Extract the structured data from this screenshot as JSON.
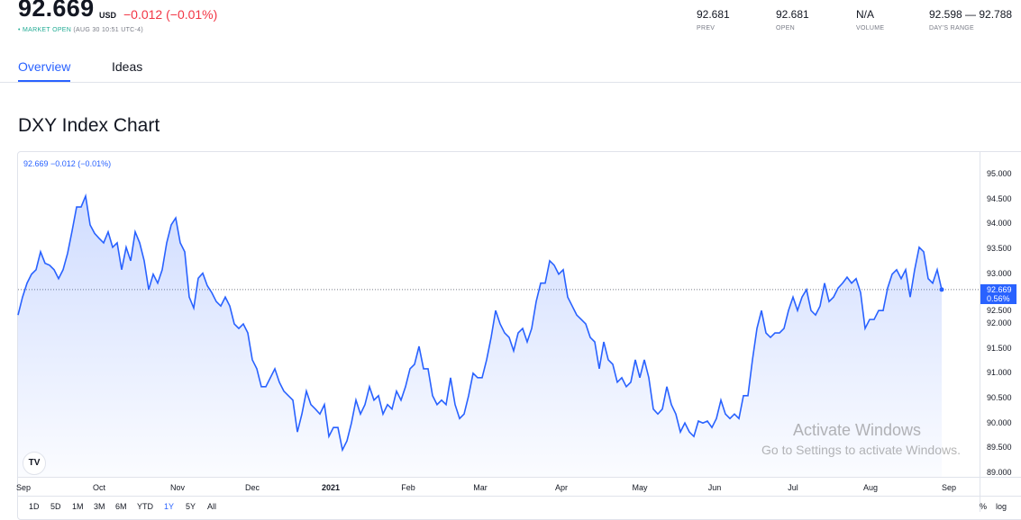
{
  "header": {
    "price": "92.669",
    "currency": "USD",
    "change": "−0.012 (−0.01%)",
    "market_status": "MARKET OPEN",
    "market_time": "(AUG 30 10:51 UTC-4)",
    "stats": [
      {
        "value": "92.681",
        "label": "PREV"
      },
      {
        "value": "92.681",
        "label": "OPEN"
      },
      {
        "value": "N/A",
        "label": "VOLUME"
      },
      {
        "value": "92.598 — 92.788",
        "label": "DAY'S RANGE"
      }
    ]
  },
  "tabs": [
    {
      "label": "Overview",
      "active": true
    },
    {
      "label": "Ideas",
      "active": false
    }
  ],
  "section_title": "DXY Index Chart",
  "chart_data": {
    "type": "area",
    "legend": "92.669 −0.012 (−0.01%)",
    "ylim": [
      88.9,
      95.25
    ],
    "y_ticks": [
      "95.000",
      "94.500",
      "94.000",
      "93.500",
      "93.000",
      "92.500",
      "92.000",
      "91.500",
      "91.000",
      "90.500",
      "90.000",
      "89.500",
      "89.000"
    ],
    "x_ticks": [
      "Sep",
      "Oct",
      "Nov",
      "Dec",
      "2021",
      "Feb",
      "Mar",
      "Apr",
      "May",
      "Jun",
      "Jul",
      "Aug",
      "Sep"
    ],
    "last_value": "92.669",
    "last_pct": "0.56%",
    "line_color": "#2962ff",
    "values": [
      92.16,
      92.52,
      92.8,
      92.98,
      93.07,
      93.43,
      93.2,
      93.16,
      93.07,
      92.89,
      93.07,
      93.4,
      93.85,
      94.33,
      94.33,
      94.55,
      93.97,
      93.8,
      93.7,
      93.61,
      93.83,
      93.52,
      93.61,
      93.07,
      93.52,
      93.25,
      93.83,
      93.61,
      93.25,
      92.67,
      92.98,
      92.8,
      93.07,
      93.61,
      93.97,
      94.11,
      93.61,
      93.43,
      92.52,
      92.3,
      92.9,
      93.0,
      92.75,
      92.61,
      92.43,
      92.34,
      92.52,
      92.34,
      91.98,
      91.89,
      91.98,
      91.8,
      91.26,
      91.08,
      90.72,
      90.72,
      90.9,
      91.08,
      90.81,
      90.63,
      90.54,
      90.45,
      89.81,
      90.17,
      90.63,
      90.36,
      90.27,
      90.17,
      90.36,
      89.72,
      89.9,
      89.9,
      89.45,
      89.63,
      89.99,
      90.45,
      90.17,
      90.36,
      90.72,
      90.45,
      90.54,
      90.17,
      90.36,
      90.27,
      90.63,
      90.45,
      90.72,
      91.08,
      91.17,
      91.53,
      91.08,
      91.08,
      90.54,
      90.36,
      90.45,
      90.36,
      90.9,
      90.36,
      90.08,
      90.17,
      90.54,
      90.99,
      90.9,
      90.9,
      91.26,
      91.71,
      92.25,
      91.98,
      91.8,
      91.71,
      91.44,
      91.8,
      91.89,
      91.62,
      91.89,
      92.43,
      92.8,
      92.8,
      93.25,
      93.16,
      92.98,
      93.07,
      92.52,
      92.34,
      92.16,
      92.07,
      91.98,
      91.71,
      91.62,
      91.08,
      91.62,
      91.26,
      91.17,
      90.81,
      90.9,
      90.72,
      90.81,
      91.26,
      90.9,
      91.26,
      90.9,
      90.27,
      90.17,
      90.27,
      90.72,
      90.36,
      90.17,
      89.81,
      89.99,
      89.81,
      89.72,
      90.03,
      89.99,
      90.03,
      89.9,
      90.08,
      90.45,
      90.17,
      90.08,
      90.17,
      90.08,
      90.54,
      90.54,
      91.26,
      91.89,
      92.25,
      91.8,
      91.71,
      91.8,
      91.8,
      91.89,
      92.25,
      92.52,
      92.25,
      92.52,
      92.67,
      92.25,
      92.16,
      92.34,
      92.8,
      92.43,
      92.52,
      92.7,
      92.8,
      92.92,
      92.8,
      92.89,
      92.61,
      91.89,
      92.07,
      92.07,
      92.25,
      92.25,
      92.7,
      92.98,
      93.07,
      92.89,
      93.07,
      92.52,
      93.07,
      93.52,
      93.43,
      92.89,
      92.8,
      93.07,
      92.67
    ]
  },
  "range_buttons": [
    {
      "label": "1D"
    },
    {
      "label": "5D"
    },
    {
      "label": "1M"
    },
    {
      "label": "3M"
    },
    {
      "label": "6M"
    },
    {
      "label": "YTD"
    },
    {
      "label": "1Y",
      "active": true
    },
    {
      "label": "5Y"
    },
    {
      "label": "All"
    }
  ],
  "scale_buttons": [
    "%",
    "log"
  ],
  "watermark": {
    "line1": "Activate Windows",
    "line2": "Go to Settings to activate Windows."
  },
  "tv_logo": "TV"
}
